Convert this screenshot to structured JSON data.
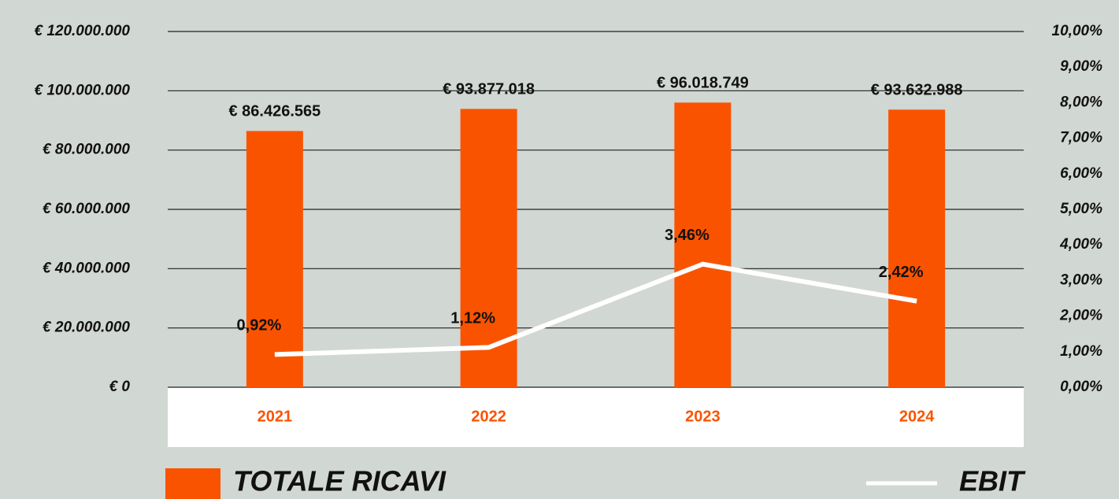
{
  "chart_data": {
    "type": "bar",
    "categories": [
      "2021",
      "2022",
      "2023",
      "2024"
    ],
    "series": [
      {
        "name": "TOTALE RICAVI",
        "type": "bar",
        "color": "#fa5300",
        "values": [
          86426565,
          93877018,
          96018749,
          93632988
        ],
        "value_labels": [
          "€ 86.426.565",
          "€ 93.877.018",
          "€ 96.018.749",
          "€ 93.632.988"
        ]
      },
      {
        "name": "EBIT",
        "type": "line",
        "axis": "y2",
        "color": "#ffffff",
        "values": [
          0.92,
          1.12,
          3.46,
          2.42
        ],
        "value_labels": [
          "0,92%",
          "1,12%",
          "3,46%",
          "2,42%"
        ]
      }
    ],
    "ylim": [
      0,
      120000000
    ],
    "yticks": [
      {
        "value": 0,
        "label": "€ 0"
      },
      {
        "value": 20000000,
        "label": "€ 20.000.000"
      },
      {
        "value": 40000000,
        "label": "€ 40.000.000"
      },
      {
        "value": 60000000,
        "label": "€ 60.000.000"
      },
      {
        "value": 80000000,
        "label": "€ 80.000.000"
      },
      {
        "value": 100000000,
        "label": "€ 100.000.000"
      },
      {
        "value": 120000000,
        "label": "€ 120.000.000"
      }
    ],
    "y2lim": [
      0,
      10
    ],
    "y2ticks": [
      {
        "value": 0,
        "label": "0,00%"
      },
      {
        "value": 1,
        "label": "1,00%"
      },
      {
        "value": 2,
        "label": "2,00%"
      },
      {
        "value": 3,
        "label": "3,00%"
      },
      {
        "value": 4,
        "label": "4,00%"
      },
      {
        "value": 5,
        "label": "5,00%"
      },
      {
        "value": 6,
        "label": "6,00%"
      },
      {
        "value": 7,
        "label": "7,00%"
      },
      {
        "value": 8,
        "label": "8,00%"
      },
      {
        "value": 9,
        "label": "9,00%"
      },
      {
        "value": 10,
        "label": "10,00%"
      }
    ],
    "grid": true
  }
}
